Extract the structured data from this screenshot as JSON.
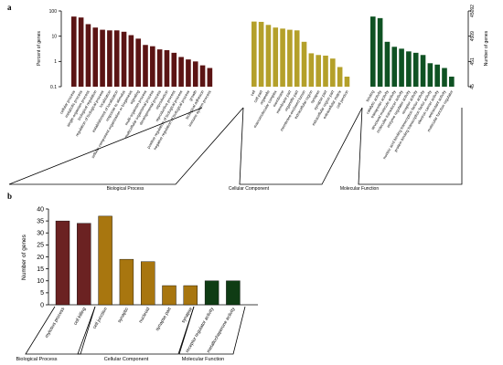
{
  "colors": {
    "bp": "#5b1414",
    "cc": "#b4a02a",
    "mf": "#0f5223",
    "bp_b": "#6b2222",
    "cc_b": "#a8760f",
    "mf_b": "#0f3c14"
  },
  "chart_data": [
    {
      "panel": "a",
      "type": "bar",
      "yscale": "log",
      "ylabel": "Percent of genes",
      "y2label": "Number of genes",
      "yticks": [
        "0.1",
        "1",
        "10",
        "100"
      ],
      "y2ticks": [
        "45",
        "451",
        "4509",
        "45092"
      ],
      "ylim": [
        0.1,
        100
      ],
      "groups": [
        {
          "name": "Biological Process",
          "color": "bp",
          "categories": [
            "cellular process",
            "metabolic process",
            "single-organism process",
            "biological regulation",
            "regulation of biological process",
            "localization",
            "establishment of localization",
            "response to stimulus",
            "cellular component organization or biogenesis",
            "signaling",
            "multi-organism process",
            "multicellular organismal process",
            "developmental process",
            "reproduction",
            "reproductive process",
            "positive regulation of biological process",
            "negative regulation of biological process",
            "growth",
            "biological adhesion",
            "immune system process"
          ],
          "values": [
            60,
            55,
            30,
            22,
            18,
            17,
            17,
            15,
            11,
            8,
            4.5,
            4,
            3,
            2.8,
            2.2,
            1.5,
            1.2,
            1.0,
            0.7,
            0.55
          ]
        },
        {
          "name": "Cellular Component",
          "color": "cc",
          "categories": [
            "cell",
            "cell part",
            "organelle",
            "macromolecular complex",
            "membrane",
            "membrane part",
            "organelle part",
            "membrane-enclosed lumen",
            "extracellular region",
            "synapse",
            "synapse part",
            "extracellular region part",
            "extracellular matrix",
            "cell junction"
          ],
          "values": [
            38,
            37,
            28,
            22,
            20,
            18,
            17,
            6,
            2.1,
            1.8,
            1.7,
            1.3,
            0.6,
            0.25
          ]
        },
        {
          "name": "Molecular Function",
          "color": "mf",
          "categories": [
            "binding",
            "catalytic activity",
            "transporter activity",
            "structural molecule activity",
            "molecular transducer activity",
            "enzyme regulator activity",
            "receptor activity",
            "nucleic acid binding transcription factor activity",
            "protein binding transcription factor activity",
            "electron carrier activity",
            "antioxidant activity",
            "molecular function regulator"
          ],
          "values": [
            60,
            52,
            6,
            3.8,
            3.2,
            2.5,
            2.2,
            1.8,
            0.85,
            0.75,
            0.55,
            0.25
          ]
        }
      ]
    },
    {
      "panel": "b",
      "type": "bar",
      "ylabel": "Number of genes",
      "ylim": [
        0,
        40
      ],
      "yticks": [
        "0",
        "5",
        "10",
        "15",
        "20",
        "25",
        "30",
        "35",
        "40"
      ],
      "groups": [
        {
          "name": "Biological Process",
          "color": "bp_b",
          "categories": [
            "mytosus process",
            "cell killing"
          ],
          "values": [
            35,
            34
          ]
        },
        {
          "name": "Cellular Component",
          "color": "cc_b",
          "categories": [
            "cell junction",
            "synaptic",
            "nucleoid",
            "synapse part",
            "synapse"
          ],
          "values": [
            37,
            19,
            18,
            8,
            8
          ]
        },
        {
          "name": "Molecular Function",
          "color": "mf_b",
          "categories": [
            "receptor regulator activity",
            "metallochaperone activity"
          ],
          "values": [
            10,
            10
          ]
        }
      ]
    }
  ]
}
